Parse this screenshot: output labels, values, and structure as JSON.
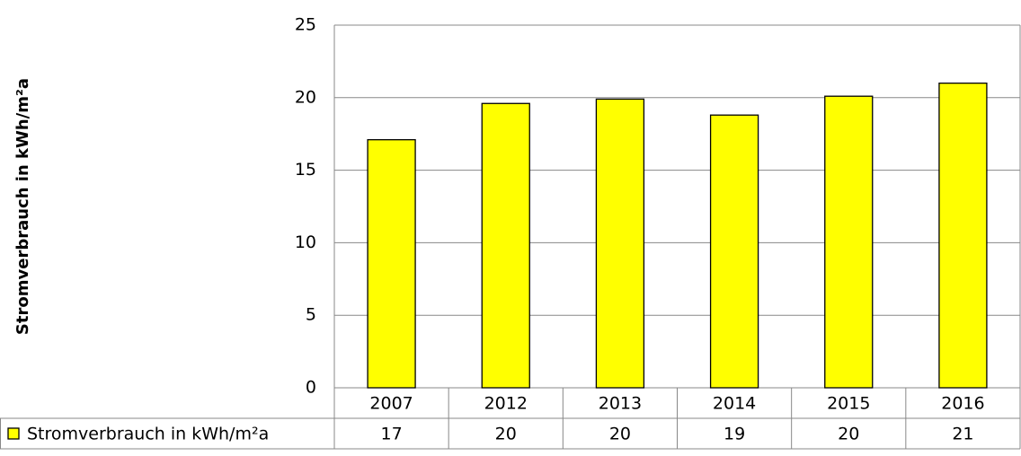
{
  "chart_data": {
    "type": "bar",
    "ylabel": "Stromverbrauch in kWh/m²a",
    "categories": [
      "2007",
      "2012",
      "2013",
      "2014",
      "2015",
      "2016"
    ],
    "series": [
      {
        "name": "Stromverbrauch in kWh/m²a",
        "color": "#ffff00",
        "values": [
          17.1,
          19.6,
          19.9,
          18.8,
          20.1,
          21.0
        ],
        "value_labels": [
          "17",
          "20",
          "20",
          "19",
          "20",
          "21"
        ]
      }
    ],
    "ylim": [
      0,
      25
    ],
    "yticks": [
      0,
      5,
      10,
      15,
      20,
      25
    ],
    "grid": true
  }
}
